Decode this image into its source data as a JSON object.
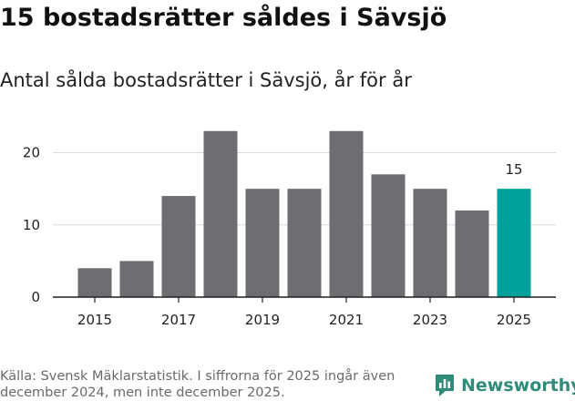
{
  "header": {
    "title": "15 bostadsrätter såldes i Sävsjö",
    "subtitle": "Antal sålda bostadsrätter i Sävsjö, år för år"
  },
  "chart_data": {
    "type": "bar",
    "title": "15 bostadsrätter såldes i Sävsjö",
    "subtitle": "Antal sålda bostadsrätter i Sävsjö, år för år",
    "categories": [
      "2015",
      "2016",
      "2017",
      "2018",
      "2019",
      "2020",
      "2021",
      "2022",
      "2023",
      "2024",
      "2025"
    ],
    "values": [
      4,
      5,
      14,
      23,
      15,
      15,
      23,
      17,
      15,
      12,
      15
    ],
    "x_tick_labels": [
      "2015",
      "2017",
      "2019",
      "2021",
      "2023",
      "2025"
    ],
    "y_ticks": [
      0,
      10,
      20
    ],
    "ylim": [
      0,
      26
    ],
    "xlabel": "",
    "ylabel": "",
    "grid": true,
    "highlight_index": 10,
    "data_labels": [
      {
        "index": 10,
        "text": "15"
      }
    ],
    "colors": {
      "bar": "#6e6d72",
      "highlight": "#00a19a",
      "grid": "#d9d9d9",
      "axis": "#222222"
    }
  },
  "footer": {
    "source": "Källa: Svensk Mäklarstatistik. I siffrorna för 2025 ingår även december 2024, men inte december 2025.",
    "brand": "Newsworthy",
    "brand_icon": "newsworthy-logo-icon",
    "brand_color": "#2f8c7a"
  }
}
